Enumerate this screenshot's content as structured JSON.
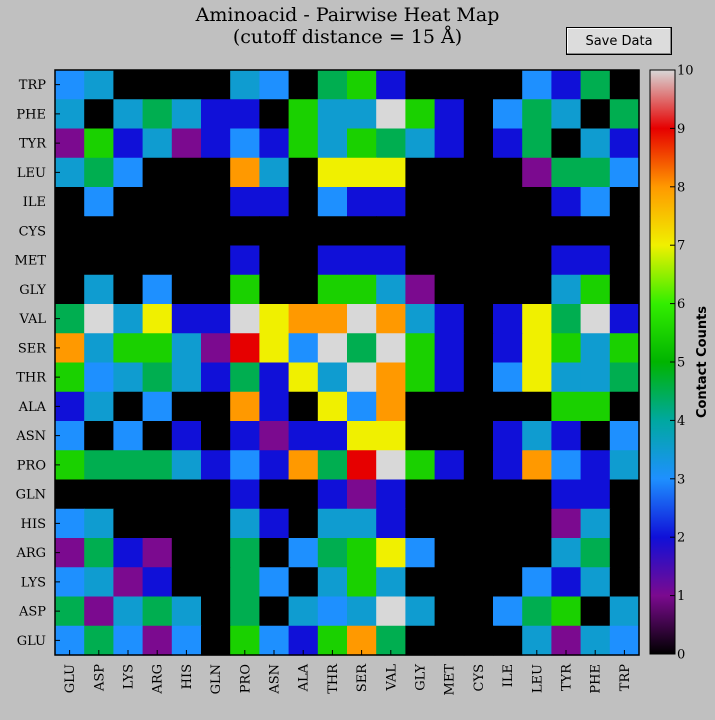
{
  "title_line1": "Aminoacid - Pairwise Heat Map",
  "title_line2": "(cutoff distance = 15 Å)",
  "save_button_label": "Save Data",
  "colorbar": {
    "label": "Contact Counts",
    "ticks": [
      "0",
      "1",
      "2",
      "3",
      "4",
      "5",
      "6",
      "7",
      "8",
      "9",
      "10"
    ],
    "min": 0,
    "max": 10,
    "colormap": [
      "#000000",
      "#7b0a8f",
      "#1010d8",
      "#1e90ff",
      "#00a8a0",
      "#00b400",
      "#33ee00",
      "#f0f000",
      "#ff9900",
      "#e60000",
      "#d8d8d8"
    ]
  },
  "chart_data": {
    "type": "heatmap",
    "title": "Aminoacid - Pairwise Heat Map (cutoff distance = 15 Å)",
    "x_labels": [
      "GLU",
      "ASP",
      "LYS",
      "ARG",
      "HIS",
      "GLN",
      "PRO",
      "ASN",
      "ALA",
      "THR",
      "SER",
      "VAL",
      "GLY",
      "MET",
      "CYS",
      "ILE",
      "LEU",
      "TYR",
      "PHE",
      "TRP"
    ],
    "y_labels": [
      "TRP",
      "PHE",
      "TYR",
      "LEU",
      "ILE",
      "CYS",
      "MET",
      "GLY",
      "VAL",
      "SER",
      "THR",
      "ALA",
      "ASN",
      "PRO",
      "GLN",
      "HIS",
      "ARG",
      "LYS",
      "ASP",
      "GLU"
    ],
    "colorbar_label": "Contact Counts",
    "vmin": 0,
    "vmax": 10,
    "values": [
      [
        3,
        3.5,
        0,
        0,
        0,
        0,
        3.5,
        3,
        0,
        4.5,
        5.5,
        2,
        0,
        0,
        0,
        0,
        3,
        2,
        4.5,
        0
      ],
      [
        3.5,
        0,
        3.5,
        4.5,
        3.5,
        2,
        2,
        0,
        5.5,
        3.5,
        3.5,
        10,
        5.5,
        2,
        0,
        3,
        4.5,
        3.5,
        0,
        4.5
      ],
      [
        1,
        5.5,
        2,
        3.5,
        1,
        2,
        3,
        2,
        5.5,
        3.5,
        5.5,
        4.5,
        3.5,
        2,
        0,
        2,
        4.5,
        0,
        3.5,
        2
      ],
      [
        3.5,
        4.5,
        3,
        0,
        0,
        0,
        8,
        3.5,
        0,
        7,
        7,
        7,
        0,
        0,
        0,
        0,
        1,
        4.5,
        4.5,
        3
      ],
      [
        0,
        3,
        0,
        0,
        0,
        0,
        2,
        2,
        0,
        3,
        2,
        2,
        0,
        0,
        0,
        0,
        0,
        2,
        3,
        0
      ],
      [
        0,
        0,
        0,
        0,
        0,
        0,
        0,
        0,
        0,
        0,
        0,
        0,
        0,
        0,
        0,
        0,
        0,
        0,
        0,
        0
      ],
      [
        0,
        0,
        0,
        0,
        0,
        0,
        2,
        0,
        0,
        2,
        2,
        2,
        0,
        0,
        0,
        0,
        0,
        2,
        2,
        0
      ],
      [
        0,
        3.5,
        0,
        3,
        0,
        0,
        5.5,
        0,
        0,
        5.5,
        5.5,
        3.5,
        1,
        0,
        0,
        0,
        0,
        3.5,
        5.5,
        0
      ],
      [
        4.5,
        10,
        3.5,
        7,
        2,
        2,
        10,
        7,
        8,
        8,
        10,
        8,
        3.5,
        2,
        0,
        2,
        7,
        4.5,
        10,
        2
      ],
      [
        8,
        3.5,
        5.5,
        5.5,
        3.5,
        1,
        9,
        7,
        3,
        10,
        4.5,
        10,
        5.5,
        2,
        0,
        2,
        7,
        5.5,
        3.5,
        5.5
      ],
      [
        5.5,
        3,
        3.5,
        4.5,
        3.5,
        2,
        4.5,
        2,
        7,
        3.5,
        10,
        8,
        5.5,
        2,
        0,
        3,
        7,
        3.5,
        3.5,
        4.5
      ],
      [
        2,
        3.5,
        0,
        3,
        0,
        0,
        8,
        2,
        0,
        7,
        3,
        8,
        0,
        0,
        0,
        0,
        0,
        5.5,
        5.5,
        0
      ],
      [
        3,
        0,
        3,
        0,
        2,
        0,
        2,
        1,
        2,
        2,
        7,
        7,
        0,
        0,
        0,
        2,
        3.5,
        2,
        0,
        3
      ],
      [
        5.5,
        4.5,
        4.5,
        4.5,
        3.5,
        2,
        3,
        2,
        8,
        4.5,
        9,
        10,
        5.5,
        2,
        0,
        2,
        8,
        3,
        2,
        3.5
      ],
      [
        0,
        0,
        0,
        0,
        0,
        0,
        2,
        0,
        0,
        2,
        1,
        2,
        0,
        0,
        0,
        0,
        0,
        2,
        2,
        0
      ],
      [
        3,
        3.5,
        0,
        0,
        0,
        0,
        3.5,
        2,
        0,
        3.5,
        3.5,
        2,
        0,
        0,
        0,
        0,
        0,
        1,
        3.5,
        0
      ],
      [
        1,
        4.5,
        2,
        1,
        0,
        0,
        4.5,
        0,
        3,
        4.5,
        5.5,
        7,
        3,
        0,
        0,
        0,
        0,
        3.5,
        4.5,
        0
      ],
      [
        3,
        3.5,
        1,
        2,
        0,
        0,
        4.5,
        3,
        0,
        3.5,
        5.5,
        3.5,
        0,
        0,
        0,
        0,
        3,
        2,
        3.5,
        0
      ],
      [
        4.5,
        1,
        3.5,
        4.5,
        3.5,
        0,
        4.5,
        0,
        3.5,
        3,
        3.5,
        10,
        3.5,
        0,
        0,
        3,
        4.5,
        5.5,
        0,
        3.5
      ],
      [
        3,
        4.5,
        3,
        1,
        3,
        0,
        5.5,
        3,
        2,
        5.5,
        8,
        4.5,
        0,
        0,
        0,
        0,
        3.5,
        1,
        3.5,
        3
      ]
    ]
  }
}
